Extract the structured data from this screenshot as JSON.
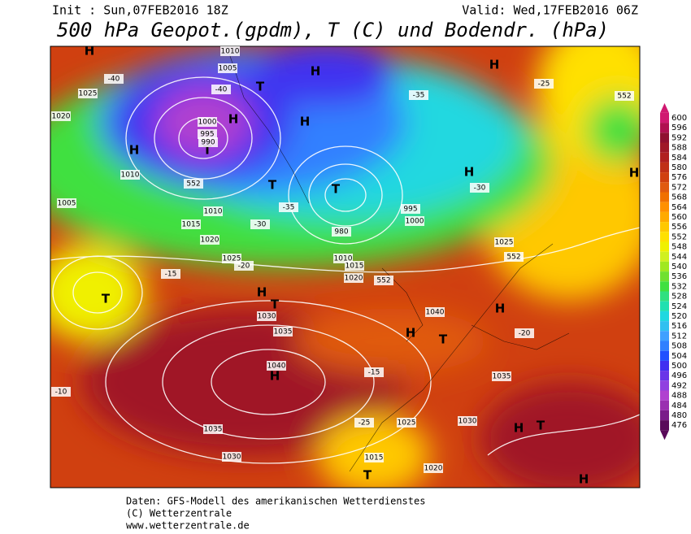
{
  "header": {
    "init": "Init : Sun,07FEB2016 18Z",
    "valid": "Valid: Wed,17FEB2016 06Z",
    "title": "500 hPa Geopot.(gpdm), T (C) und Bodendr. (hPa)"
  },
  "colorbar": {
    "ticks": [
      600,
      596,
      592,
      588,
      584,
      580,
      576,
      572,
      568,
      564,
      560,
      556,
      552,
      548,
      544,
      540,
      536,
      532,
      528,
      524,
      520,
      516,
      512,
      508,
      504,
      500,
      496,
      492,
      488,
      484,
      480,
      476
    ],
    "colors": [
      "#d01870",
      "#b01050",
      "#901030",
      "#a01828",
      "#b02020",
      "#c03018",
      "#d04010",
      "#e05a10",
      "#f07000",
      "#ff9000",
      "#ffaa00",
      "#ffc800",
      "#ffe000",
      "#f0f000",
      "#d0f020",
      "#a0e820",
      "#70e030",
      "#40e040",
      "#30e080",
      "#20e0b0",
      "#20d8e0",
      "#30c0f0",
      "#40a0ff",
      "#3080ff",
      "#2050ff",
      "#4030f0",
      "#6a35e8",
      "#9040e0",
      "#b040d0",
      "#9a2fb0",
      "#7a1b8a",
      "#5a0a5a"
    ]
  },
  "map_labels": [
    "H",
    "H",
    "H",
    "T",
    "H",
    "T",
    "H",
    "T",
    "H",
    "T",
    "H",
    "T",
    "H",
    "H",
    "T",
    "H",
    "H",
    "H",
    "T",
    "T",
    "T",
    "H",
    "H",
    "1010",
    "1005",
    "1025",
    "1020",
    "1000",
    "995",
    "990",
    "1010",
    "1005",
    "1010",
    "1015",
    "1020",
    "1025",
    "1035",
    "1040",
    "1030",
    "1035",
    "1040",
    "1030",
    "1025",
    "1020",
    "1015",
    "1000",
    "995",
    "980",
    "1010",
    "1015",
    "1020",
    "1025",
    "1035",
    "1030",
    "-40",
    "-35",
    "-30",
    "-25",
    "-20",
    "-15",
    "-10",
    "-15",
    "-20",
    "-25",
    "-30",
    "-35",
    "-40",
    "552",
    "552",
    "552",
    "552"
  ],
  "footer": [
    "Daten: GFS-Modell des amerikanischen Wetterdienstes",
    "(C) Wetterzentrale",
    "www.wetterzentrale.de"
  ]
}
